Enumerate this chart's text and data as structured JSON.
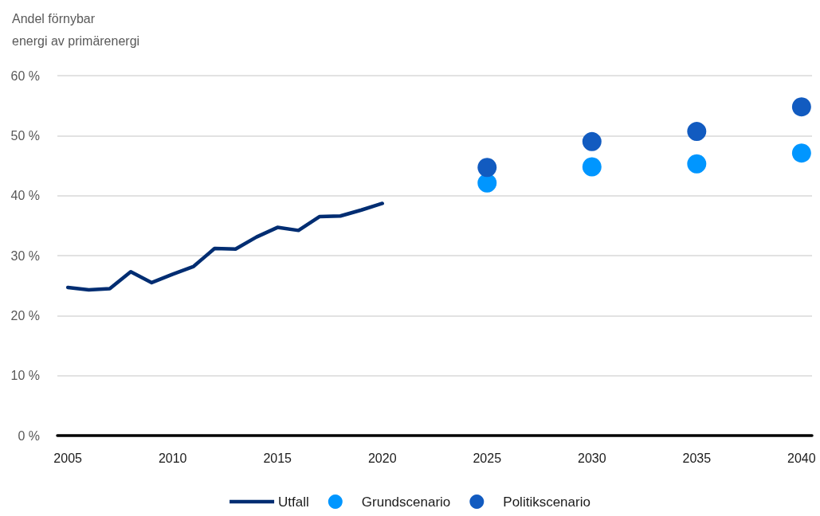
{
  "chart_data": {
    "type": "line",
    "ylabel": "Andel förnybar\nenergi av primärenergi",
    "xlim": [
      2004.5,
      2040.5
    ],
    "xticks": [
      2005,
      2010,
      2015,
      2020,
      2025,
      2030,
      2035,
      2040
    ],
    "ylim": [
      0,
      60
    ],
    "yticks": [
      {
        "value": 0,
        "label": "0 %"
      },
      {
        "value": 10,
        "label": "10 %"
      },
      {
        "value": 20,
        "label": "20 %"
      },
      {
        "value": 30,
        "label": "30 %"
      },
      {
        "value": 40,
        "label": "40 %"
      },
      {
        "value": 50,
        "label": "50 %"
      },
      {
        "value": 60,
        "label": "60 %"
      }
    ],
    "grid": "y",
    "legend": "bottom",
    "series": [
      {
        "name": "Utfall",
        "color": "#002d72",
        "marker": "none",
        "line_style": "solid",
        "x": [
          2005,
          2006,
          2007,
          2008,
          2009,
          2010,
          2011,
          2012,
          2013,
          2014,
          2015,
          2016,
          2017,
          2018,
          2019,
          2020
        ],
        "values": [
          24.7,
          24.3,
          24.5,
          27.3,
          25.5,
          26.9,
          28.2,
          31.2,
          31.1,
          33.1,
          34.7,
          34.2,
          36.5,
          36.6,
          37.6,
          38.7
        ]
      },
      {
        "name": "Grundscenario",
        "type": "scatter",
        "color": "#0096ff",
        "marker": "circle",
        "x": [
          2025,
          2030,
          2035,
          2040
        ],
        "values": [
          42.1,
          44.8,
          45.3,
          47.1
        ]
      },
      {
        "name": "Politikscenario",
        "type": "scatter",
        "color": "#125bc0",
        "marker": "circle",
        "x": [
          2025,
          2030,
          2035,
          2040
        ],
        "values": [
          44.7,
          49.0,
          50.7,
          54.8
        ]
      }
    ]
  }
}
